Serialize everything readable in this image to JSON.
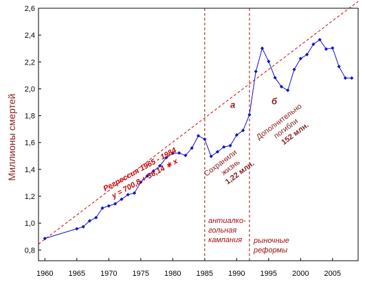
{
  "chart_data": {
    "type": "line",
    "ylabel": "Миллионы смертей",
    "xlabel": "",
    "xlim": [
      1959,
      2009
    ],
    "ylim": [
      0.72,
      2.6
    ],
    "x_ticks": [
      1960,
      1965,
      1970,
      1975,
      1980,
      1985,
      1990,
      1995,
      2000,
      2005
    ],
    "y_ticks": [
      {
        "v": 0.8,
        "label": "0,8"
      },
      {
        "v": 1.0,
        "label": "1,0"
      },
      {
        "v": 1.2,
        "label": "1,2"
      },
      {
        "v": 1.4,
        "label": "1,4"
      },
      {
        "v": 1.6,
        "label": "1,6"
      },
      {
        "v": 1.8,
        "label": "1,8"
      },
      {
        "v": 2.0,
        "label": "2,0"
      },
      {
        "v": 2.2,
        "label": "2,2"
      },
      {
        "v": 2.4,
        "label": "2,4"
      },
      {
        "v": 2.6,
        "label": "2,6"
      }
    ],
    "grid": false,
    "series": [
      {
        "color": "#1010cc",
        "x": [
          1960,
          1965,
          1966,
          1967,
          1968,
          1969,
          1970,
          1971,
          1972,
          1973,
          1974,
          1975,
          1976,
          1977,
          1978,
          1979,
          1980,
          1981,
          1982,
          1983,
          1984,
          1985,
          1986,
          1987,
          1988,
          1989,
          1990,
          1991,
          1992,
          1993,
          1994,
          1995,
          1996,
          1997,
          1998,
          1999,
          2000,
          2001,
          2002,
          2003,
          2004,
          2005,
          2006,
          2007,
          2008
        ],
        "y": [
          0.886,
          0.958,
          0.973,
          1.017,
          1.041,
          1.112,
          1.128,
          1.144,
          1.178,
          1.212,
          1.224,
          1.305,
          1.35,
          1.388,
          1.427,
          1.488,
          1.52,
          1.522,
          1.504,
          1.559,
          1.65,
          1.625,
          1.497,
          1.531,
          1.567,
          1.577,
          1.656,
          1.69,
          1.807,
          2.129,
          2.302,
          2.204,
          2.083,
          2.016,
          1.989,
          2.144,
          2.225,
          2.255,
          2.332,
          2.366,
          2.296,
          2.304,
          2.166,
          2.08,
          2.08
        ]
      }
    ],
    "regression": {
      "color": "#cc0000",
      "x_range": [
        1959,
        2009
      ],
      "slope": 0.03614,
      "base_year": 1960,
      "base_value": 0.88
    },
    "reference_lines": [
      {
        "x": 1985,
        "color": "#a01010"
      },
      {
        "x": 1992,
        "color": "#a01010"
      }
    ],
    "annotations": {
      "regression_title": "Регрессия 1965 - 1984",
      "regression_formula": "y  =  700,8 + 36,14  ∗  x",
      "letter_a": "а",
      "letter_b": "б",
      "saved_line1": "Сохранили",
      "saved_line2": "жизнь",
      "saved_value": "1,22 млн.",
      "extra_line1": "Дополнительно",
      "extra_line2": "погибли",
      "extra_value": "152 млн.",
      "campaign_line1": "антиалко-",
      "campaign_line2": "гольная",
      "campaign_line3": "кампания",
      "reforms_line1": "рыночные",
      "reforms_line2": "реформы"
    }
  }
}
